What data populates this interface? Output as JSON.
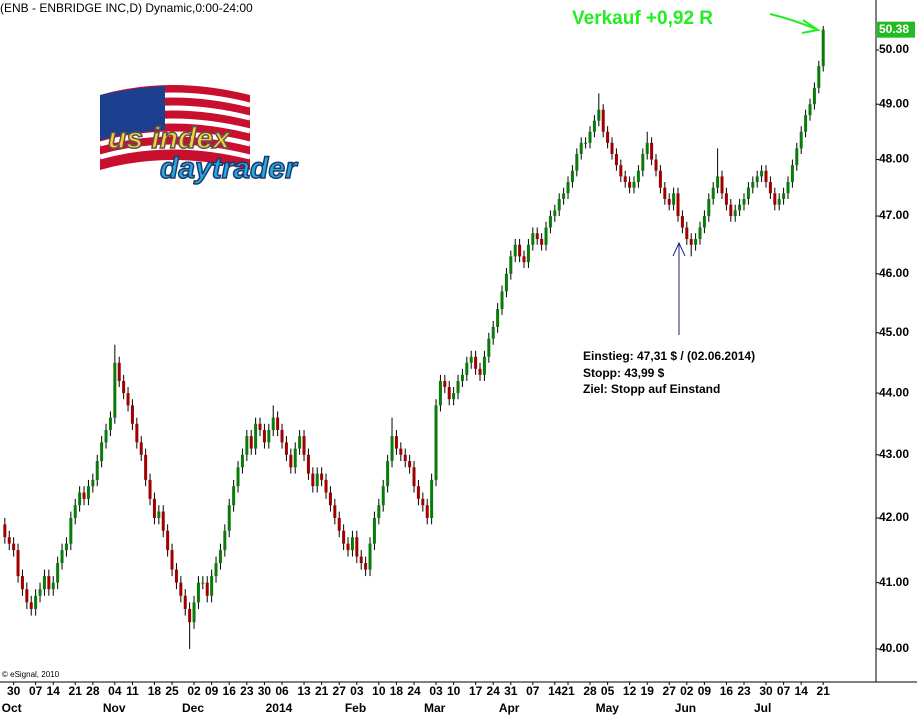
{
  "chart_data": {
    "type": "candlestick",
    "title": "(ENB - ENBRIDGE INC,D) Dynamic,0:00-24:00",
    "headline": "Verkauf +0,92 R",
    "annotations": [
      "Einstieg: 47,31 $ / (02.06.2014)",
      "Stopp: 43,99 $",
      "Ziel:  Stopp auf Einstand"
    ],
    "credit": "© eSignal, 2010",
    "logo": [
      "us index",
      "daytrader"
    ],
    "log_scale": true,
    "colors": {
      "up": "#0a7a0a",
      "down": "#a00000",
      "wick": "#000000",
      "last": "#22bb22"
    },
    "last_price": 50.38,
    "xlim": [
      -1.1,
      198
    ],
    "ylim": [
      39.51,
      50.94
    ],
    "yticks": [
      {
        "value": 40,
        "label": "40.00"
      },
      {
        "value": 41,
        "label": "41.00"
      },
      {
        "value": 42,
        "label": "42.00"
      },
      {
        "value": 43,
        "label": "43.00"
      },
      {
        "value": 44,
        "label": "44.00"
      },
      {
        "value": 45,
        "label": "45.00"
      },
      {
        "value": 46,
        "label": "46.00"
      },
      {
        "value": 47,
        "label": "47.00"
      },
      {
        "value": 48,
        "label": "48.00"
      },
      {
        "value": 49,
        "label": "49.00"
      },
      {
        "value": 50,
        "label": "50.00"
      }
    ],
    "xticks": [
      {
        "value": 2,
        "label": "30"
      },
      {
        "value": 7,
        "label": "07"
      },
      {
        "value": 11,
        "label": "14"
      },
      {
        "value": 16,
        "label": "21"
      },
      {
        "value": 20,
        "label": "28"
      },
      {
        "value": 25,
        "label": "04"
      },
      {
        "value": 29,
        "label": "11"
      },
      {
        "value": 34,
        "label": "18"
      },
      {
        "value": 38,
        "label": "25"
      },
      {
        "value": 43,
        "label": "02"
      },
      {
        "value": 47,
        "label": "09"
      },
      {
        "value": 51,
        "label": "16"
      },
      {
        "value": 55,
        "label": "23"
      },
      {
        "value": 59,
        "label": "30"
      },
      {
        "value": 63,
        "label": "06"
      },
      {
        "value": 68,
        "label": "13"
      },
      {
        "value": 72,
        "label": "21"
      },
      {
        "value": 76,
        "label": "27"
      },
      {
        "value": 80,
        "label": "03"
      },
      {
        "value": 85,
        "label": "10"
      },
      {
        "value": 89,
        "label": "18"
      },
      {
        "value": 93,
        "label": "24"
      },
      {
        "value": 98,
        "label": "03"
      },
      {
        "value": 102,
        "label": "10"
      },
      {
        "value": 107,
        "label": "17"
      },
      {
        "value": 111,
        "label": "24"
      },
      {
        "value": 115,
        "label": "31"
      },
      {
        "value": 120,
        "label": "07"
      },
      {
        "value": 125,
        "label": "14"
      },
      {
        "value": 128,
        "label": "21"
      },
      {
        "value": 133,
        "label": "28"
      },
      {
        "value": 137,
        "label": "05"
      },
      {
        "value": 142,
        "label": "12"
      },
      {
        "value": 146,
        "label": "19"
      },
      {
        "value": 151,
        "label": "27"
      },
      {
        "value": 155,
        "label": "02"
      },
      {
        "value": 159,
        "label": "09"
      },
      {
        "value": 164,
        "label": "16"
      },
      {
        "value": 168,
        "label": "23"
      },
      {
        "value": 173,
        "label": "30"
      },
      {
        "value": 177,
        "label": "07"
      },
      {
        "value": 181,
        "label": "14"
      },
      {
        "value": 186,
        "label": "21"
      }
    ],
    "months": [
      {
        "value": 2,
        "label": "Oct"
      },
      {
        "value": 25,
        "label": "Nov"
      },
      {
        "value": 43,
        "label": "Dec"
      },
      {
        "value": 62,
        "label": "2014"
      },
      {
        "value": 80,
        "label": "Feb"
      },
      {
        "value": 98,
        "label": "Mar"
      },
      {
        "value": 115,
        "label": "Apr"
      },
      {
        "value": 137,
        "label": "May"
      },
      {
        "value": 155,
        "label": "Jun"
      },
      {
        "value": 173,
        "label": "Jul"
      }
    ],
    "open": [
      41.9,
      41.7,
      41.6,
      41.5,
      41.1,
      40.9,
      40.7,
      40.6,
      40.8,
      40.9,
      41.1,
      40.9,
      41.0,
      41.3,
      41.5,
      41.6,
      42.0,
      42.2,
      42.4,
      42.3,
      42.5,
      42.6,
      42.9,
      43.2,
      43.4,
      43.6,
      44.5,
      44.2,
      44.0,
      43.8,
      43.5,
      43.2,
      43.0,
      42.6,
      42.3,
      42.0,
      42.1,
      41.8,
      41.5,
      41.2,
      41.0,
      40.8,
      40.6,
      40.4,
      40.7,
      41.0,
      41.0,
      40.8,
      41.1,
      41.3,
      41.5,
      41.8,
      42.2,
      42.5,
      42.8,
      43.0,
      43.3,
      43.1,
      43.5,
      43.4,
      43.2,
      43.4,
      43.6,
      43.4,
      43.2,
      43.0,
      42.8,
      43.1,
      43.3,
      43.0,
      42.7,
      42.5,
      42.7,
      42.6,
      42.4,
      42.2,
      42.0,
      41.8,
      41.6,
      41.5,
      41.7,
      41.4,
      41.3,
      41.2,
      41.6,
      42.0,
      42.2,
      42.5,
      42.9,
      43.3,
      43.1,
      43.0,
      42.9,
      42.8,
      42.5,
      42.3,
      42.2,
      42.0,
      42.6,
      43.8,
      44.2,
      44.1,
      43.9,
      44.0,
      44.2,
      44.3,
      44.5,
      44.6,
      44.4,
      44.3,
      44.6,
      44.9,
      45.1,
      45.4,
      45.7,
      46.0,
      46.3,
      46.5,
      46.3,
      46.2,
      46.5,
      46.7,
      46.6,
      46.5,
      46.8,
      47.0,
      47.1,
      47.3,
      47.4,
      47.6,
      47.8,
      48.1,
      48.3,
      48.3,
      48.5,
      48.7,
      48.9,
      48.5,
      48.3,
      48.1,
      47.9,
      47.7,
      47.6,
      47.5,
      47.6,
      47.8,
      48.1,
      48.3,
      48.0,
      47.8,
      47.5,
      47.3,
      47.2,
      47.4,
      47.0,
      46.8,
      46.6,
      46.5,
      46.6,
      46.8,
      47.0,
      47.3,
      47.5,
      47.7,
      47.4,
      47.2,
      47.0,
      47.1,
      47.2,
      47.3,
      47.5,
      47.6,
      47.7,
      47.8,
      47.6,
      47.4,
      47.2,
      47.3,
      47.4,
      47.6,
      47.9,
      48.2,
      48.5,
      48.8,
      49.0,
      49.3,
      49.7
    ],
    "high": [
      42.0,
      41.8,
      41.7,
      41.6,
      41.2,
      41.0,
      40.8,
      40.9,
      41.0,
      41.2,
      41.2,
      41.1,
      41.4,
      41.6,
      41.7,
      42.1,
      42.3,
      42.5,
      42.5,
      42.6,
      42.7,
      43.0,
      43.3,
      43.5,
      43.7,
      44.8,
      44.6,
      44.3,
      44.1,
      43.9,
      43.6,
      43.3,
      43.1,
      42.7,
      42.4,
      42.2,
      42.2,
      41.9,
      41.6,
      41.3,
      41.1,
      40.9,
      40.7,
      40.8,
      41.1,
      41.1,
      41.1,
      41.2,
      41.4,
      41.6,
      41.9,
      42.3,
      42.6,
      42.9,
      43.1,
      43.4,
      43.4,
      43.6,
      43.6,
      43.5,
      43.5,
      43.8,
      43.7,
      43.5,
      43.3,
      43.1,
      43.2,
      43.4,
      43.4,
      43.1,
      42.8,
      42.8,
      42.8,
      42.7,
      42.5,
      42.3,
      42.1,
      41.9,
      41.7,
      41.8,
      41.8,
      41.5,
      41.4,
      41.7,
      42.1,
      42.3,
      42.6,
      43.0,
      43.6,
      43.4,
      43.2,
      43.1,
      43.0,
      42.9,
      42.6,
      42.4,
      42.3,
      42.7,
      43.9,
      44.3,
      44.3,
      44.2,
      44.1,
      44.3,
      44.4,
      44.6,
      44.7,
      44.7,
      44.5,
      44.7,
      45.0,
      45.2,
      45.5,
      45.8,
      46.1,
      46.4,
      46.6,
      46.6,
      46.4,
      46.6,
      46.8,
      46.8,
      46.7,
      46.9,
      47.1,
      47.2,
      47.4,
      47.5,
      47.7,
      47.9,
      48.2,
      48.4,
      48.4,
      48.6,
      48.8,
      49.2,
      49.0,
      48.6,
      48.4,
      48.2,
      48.0,
      47.8,
      47.7,
      47.7,
      47.9,
      48.2,
      48.5,
      48.4,
      48.1,
      47.9,
      47.6,
      47.4,
      47.5,
      47.5,
      47.1,
      46.9,
      46.7,
      46.7,
      46.9,
      47.1,
      47.4,
      47.6,
      48.2,
      47.8,
      47.5,
      47.3,
      47.2,
      47.3,
      47.4,
      47.6,
      47.7,
      47.8,
      47.9,
      47.9,
      47.7,
      47.5,
      47.4,
      47.5,
      47.7,
      48.0,
      48.3,
      48.6,
      48.9,
      49.1,
      49.4,
      49.8,
      50.45
    ],
    "low": [
      41.6,
      41.5,
      41.4,
      41.0,
      40.8,
      40.6,
      40.5,
      40.5,
      40.7,
      40.8,
      40.8,
      40.8,
      40.9,
      41.2,
      41.4,
      41.5,
      41.9,
      42.1,
      42.2,
      42.2,
      42.4,
      42.5,
      42.8,
      43.1,
      43.3,
      43.5,
      44.1,
      43.9,
      43.7,
      43.4,
      43.1,
      42.9,
      42.5,
      42.2,
      41.9,
      41.9,
      41.7,
      41.4,
      41.1,
      40.9,
      40.7,
      40.5,
      40.0,
      40.3,
      40.6,
      40.9,
      40.7,
      40.7,
      41.0,
      41.2,
      41.4,
      41.7,
      42.1,
      42.4,
      42.7,
      42.9,
      43.0,
      43.0,
      43.3,
      43.1,
      43.1,
      43.3,
      43.3,
      43.1,
      42.9,
      42.7,
      42.7,
      43.0,
      42.9,
      42.6,
      42.4,
      42.4,
      42.5,
      42.3,
      42.1,
      41.9,
      41.7,
      41.5,
      41.4,
      41.4,
      41.3,
      41.2,
      41.1,
      41.1,
      41.5,
      41.9,
      42.1,
      42.4,
      42.8,
      43.0,
      42.9,
      42.8,
      42.7,
      42.4,
      42.2,
      42.1,
      41.9,
      41.9,
      42.5,
      43.7,
      44.0,
      43.8,
      43.8,
      43.9,
      44.1,
      44.2,
      44.4,
      44.3,
      44.2,
      44.2,
      44.5,
      44.8,
      45.0,
      45.3,
      45.6,
      45.9,
      46.2,
      46.2,
      46.1,
      46.1,
      46.4,
      46.5,
      46.4,
      46.4,
      46.7,
      46.9,
      47.0,
      47.2,
      47.3,
      47.5,
      47.7,
      48.0,
      48.2,
      48.2,
      48.4,
      48.6,
      48.4,
      48.2,
      48.0,
      47.8,
      47.6,
      47.5,
      47.4,
      47.4,
      47.5,
      47.7,
      48.0,
      47.9,
      47.7,
      47.4,
      47.2,
      47.1,
      47.1,
      46.9,
      46.7,
      46.5,
      46.3,
      46.4,
      46.5,
      46.7,
      46.9,
      47.2,
      47.4,
      47.3,
      47.1,
      46.9,
      46.9,
      47.0,
      47.1,
      47.2,
      47.4,
      47.5,
      47.6,
      47.5,
      47.3,
      47.1,
      47.1,
      47.2,
      47.3,
      47.5,
      47.8,
      48.1,
      48.4,
      48.7,
      48.9,
      49.2,
      49.6
    ],
    "close": [
      41.7,
      41.6,
      41.5,
      41.1,
      40.9,
      40.7,
      40.6,
      40.8,
      40.9,
      41.1,
      40.9,
      41.0,
      41.3,
      41.5,
      41.6,
      42.0,
      42.2,
      42.4,
      42.3,
      42.5,
      42.6,
      42.9,
      43.2,
      43.4,
      43.6,
      44.5,
      44.2,
      44.0,
      43.8,
      43.5,
      43.2,
      43.0,
      42.6,
      42.3,
      42.0,
      42.1,
      41.8,
      41.5,
      41.2,
      41.0,
      40.8,
      40.6,
      40.4,
      40.7,
      41.0,
      41.0,
      40.8,
      41.1,
      41.3,
      41.5,
      41.8,
      42.2,
      42.5,
      42.8,
      43.0,
      43.3,
      43.1,
      43.5,
      43.4,
      43.2,
      43.4,
      43.6,
      43.4,
      43.2,
      43.0,
      42.8,
      43.1,
      43.3,
      43.0,
      42.7,
      42.5,
      42.7,
      42.6,
      42.4,
      42.2,
      42.0,
      41.8,
      41.6,
      41.5,
      41.7,
      41.4,
      41.3,
      41.2,
      41.6,
      42.0,
      42.2,
      42.5,
      42.9,
      43.3,
      43.1,
      43.0,
      42.9,
      42.8,
      42.5,
      42.3,
      42.2,
      42.0,
      42.6,
      43.8,
      44.2,
      44.1,
      43.9,
      44.0,
      44.2,
      44.3,
      44.5,
      44.6,
      44.4,
      44.3,
      44.6,
      44.9,
      45.1,
      45.4,
      45.7,
      46.0,
      46.3,
      46.5,
      46.3,
      46.2,
      46.5,
      46.7,
      46.6,
      46.5,
      46.8,
      47.0,
      47.1,
      47.3,
      47.4,
      47.6,
      47.8,
      48.1,
      48.3,
      48.3,
      48.5,
      48.7,
      48.9,
      48.5,
      48.3,
      48.1,
      47.9,
      47.7,
      47.6,
      47.5,
      47.6,
      47.8,
      48.1,
      48.3,
      48.0,
      47.8,
      47.5,
      47.3,
      47.2,
      47.4,
      47.0,
      46.8,
      46.6,
      46.5,
      46.6,
      46.8,
      47.0,
      47.3,
      47.5,
      47.7,
      47.4,
      47.2,
      47.0,
      47.1,
      47.2,
      47.3,
      47.5,
      47.6,
      47.7,
      47.8,
      47.6,
      47.4,
      47.2,
      47.3,
      47.4,
      47.6,
      47.9,
      48.2,
      48.5,
      48.8,
      49.0,
      49.3,
      49.7,
      50.38
    ]
  }
}
